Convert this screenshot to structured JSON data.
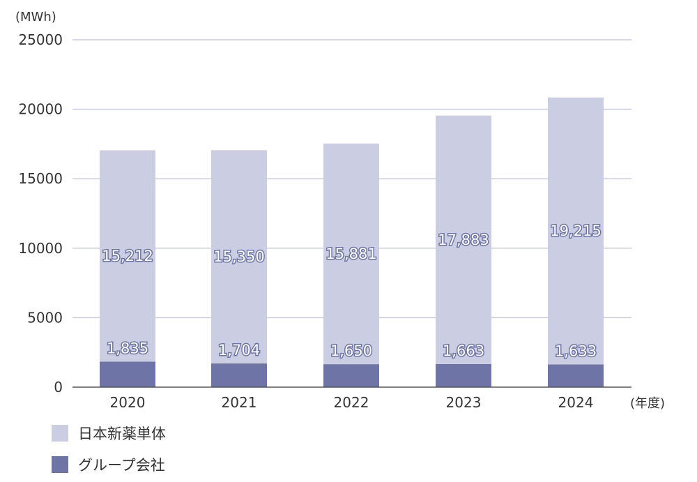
{
  "chart_data": {
    "type": "bar",
    "stacked": true,
    "categories": [
      "2020",
      "2021",
      "2022",
      "2023",
      "2024"
    ],
    "series": [
      {
        "name": "グループ会社",
        "values": [
          1835,
          1704,
          1650,
          1663,
          1633
        ],
        "labels": [
          "1,835",
          "1,704",
          "1,650",
          "1,663",
          "1,633"
        ],
        "color": "#6e74a6"
      },
      {
        "name": "日本新薬単体",
        "values": [
          15212,
          15350,
          15881,
          17883,
          19215
        ],
        "labels": [
          "15,212",
          "15,350",
          "15,881",
          "17,883",
          "19,215"
        ],
        "color": "#cbcee2"
      }
    ],
    "y_unit": "(MWh)",
    "x_unit": "(年度)",
    "ylim": [
      0,
      25000
    ],
    "yticks": [
      "0",
      "5000",
      "10000",
      "15000",
      "20000",
      "25000"
    ],
    "grid": true,
    "legend_position": "bottom-left"
  },
  "legend": [
    {
      "label": "日本新薬単体",
      "color": "#cbcee2"
    },
    {
      "label": "グループ会社",
      "color": "#6e74a6"
    }
  ]
}
